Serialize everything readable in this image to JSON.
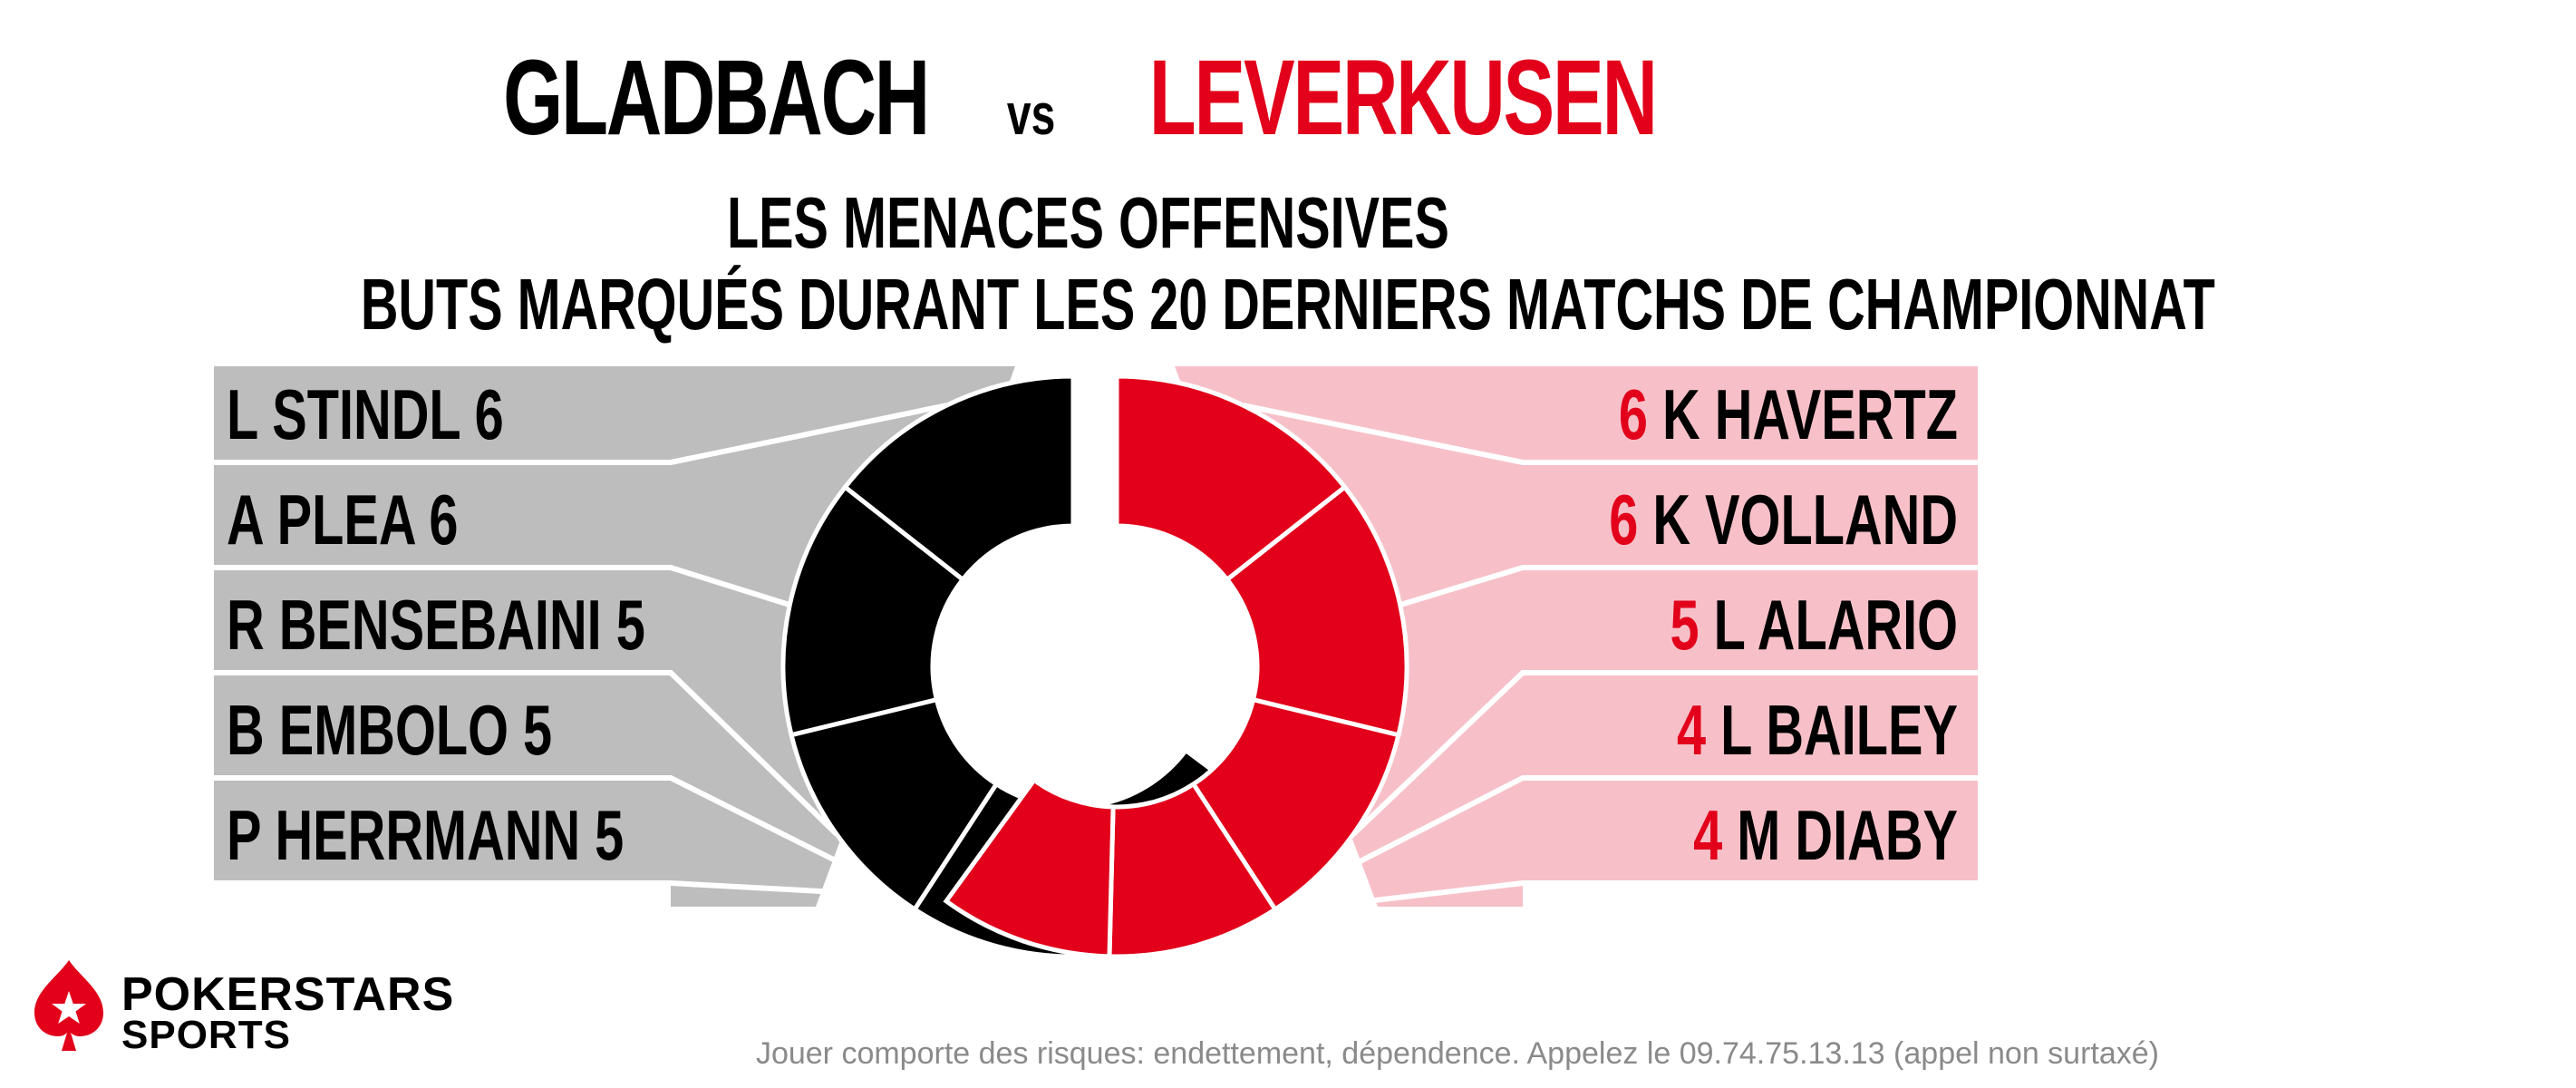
{
  "header": {
    "team_home": "GLADBACH",
    "vs": "vs",
    "team_away": "LEVERKUSEN",
    "subtitle_1": "LES MENACES OFFENSIVES",
    "subtitle_2": "BUTS MARQUÉS DURANT LES 20 DERNIERS MATCHS DE CHAMPIONNAT"
  },
  "colors": {
    "home": "#000000",
    "away": "#e2001a",
    "home_panel": "#bdbdbd",
    "away_panel": "#f7c0c8",
    "remainder": "#e3e3e3"
  },
  "chart_data": {
    "type": "pie",
    "variant": "split-donut",
    "title": "LES MENACES OFFENSIVES",
    "subtitle": "BUTS MARQUÉS DURANT LES 20 DERNIERS MATCHS DE CHAMPIONNAT",
    "series": [
      {
        "name": "GLADBACH",
        "players": [
          "L STINDL",
          "A PLEA",
          "R BENSEBAINI",
          "B EMBOLO",
          "P HERRMANN"
        ],
        "values": [
          6,
          6,
          5,
          5,
          5
        ]
      },
      {
        "name": "LEVERKUSEN",
        "players": [
          "K HAVERTZ",
          "K VOLLAND",
          "L ALARIO",
          "L BAILEY",
          "M DIABY"
        ],
        "values": [
          6,
          6,
          5,
          4,
          4
        ]
      }
    ]
  },
  "footer": {
    "brand_line_1": "POKERSTARS",
    "brand_line_2": "SPORTS",
    "disclaimer": "Jouer comporte des risques: endettement, dépendence. Appelez le 09.74.75.13.13 (appel non surtaxé)"
  }
}
